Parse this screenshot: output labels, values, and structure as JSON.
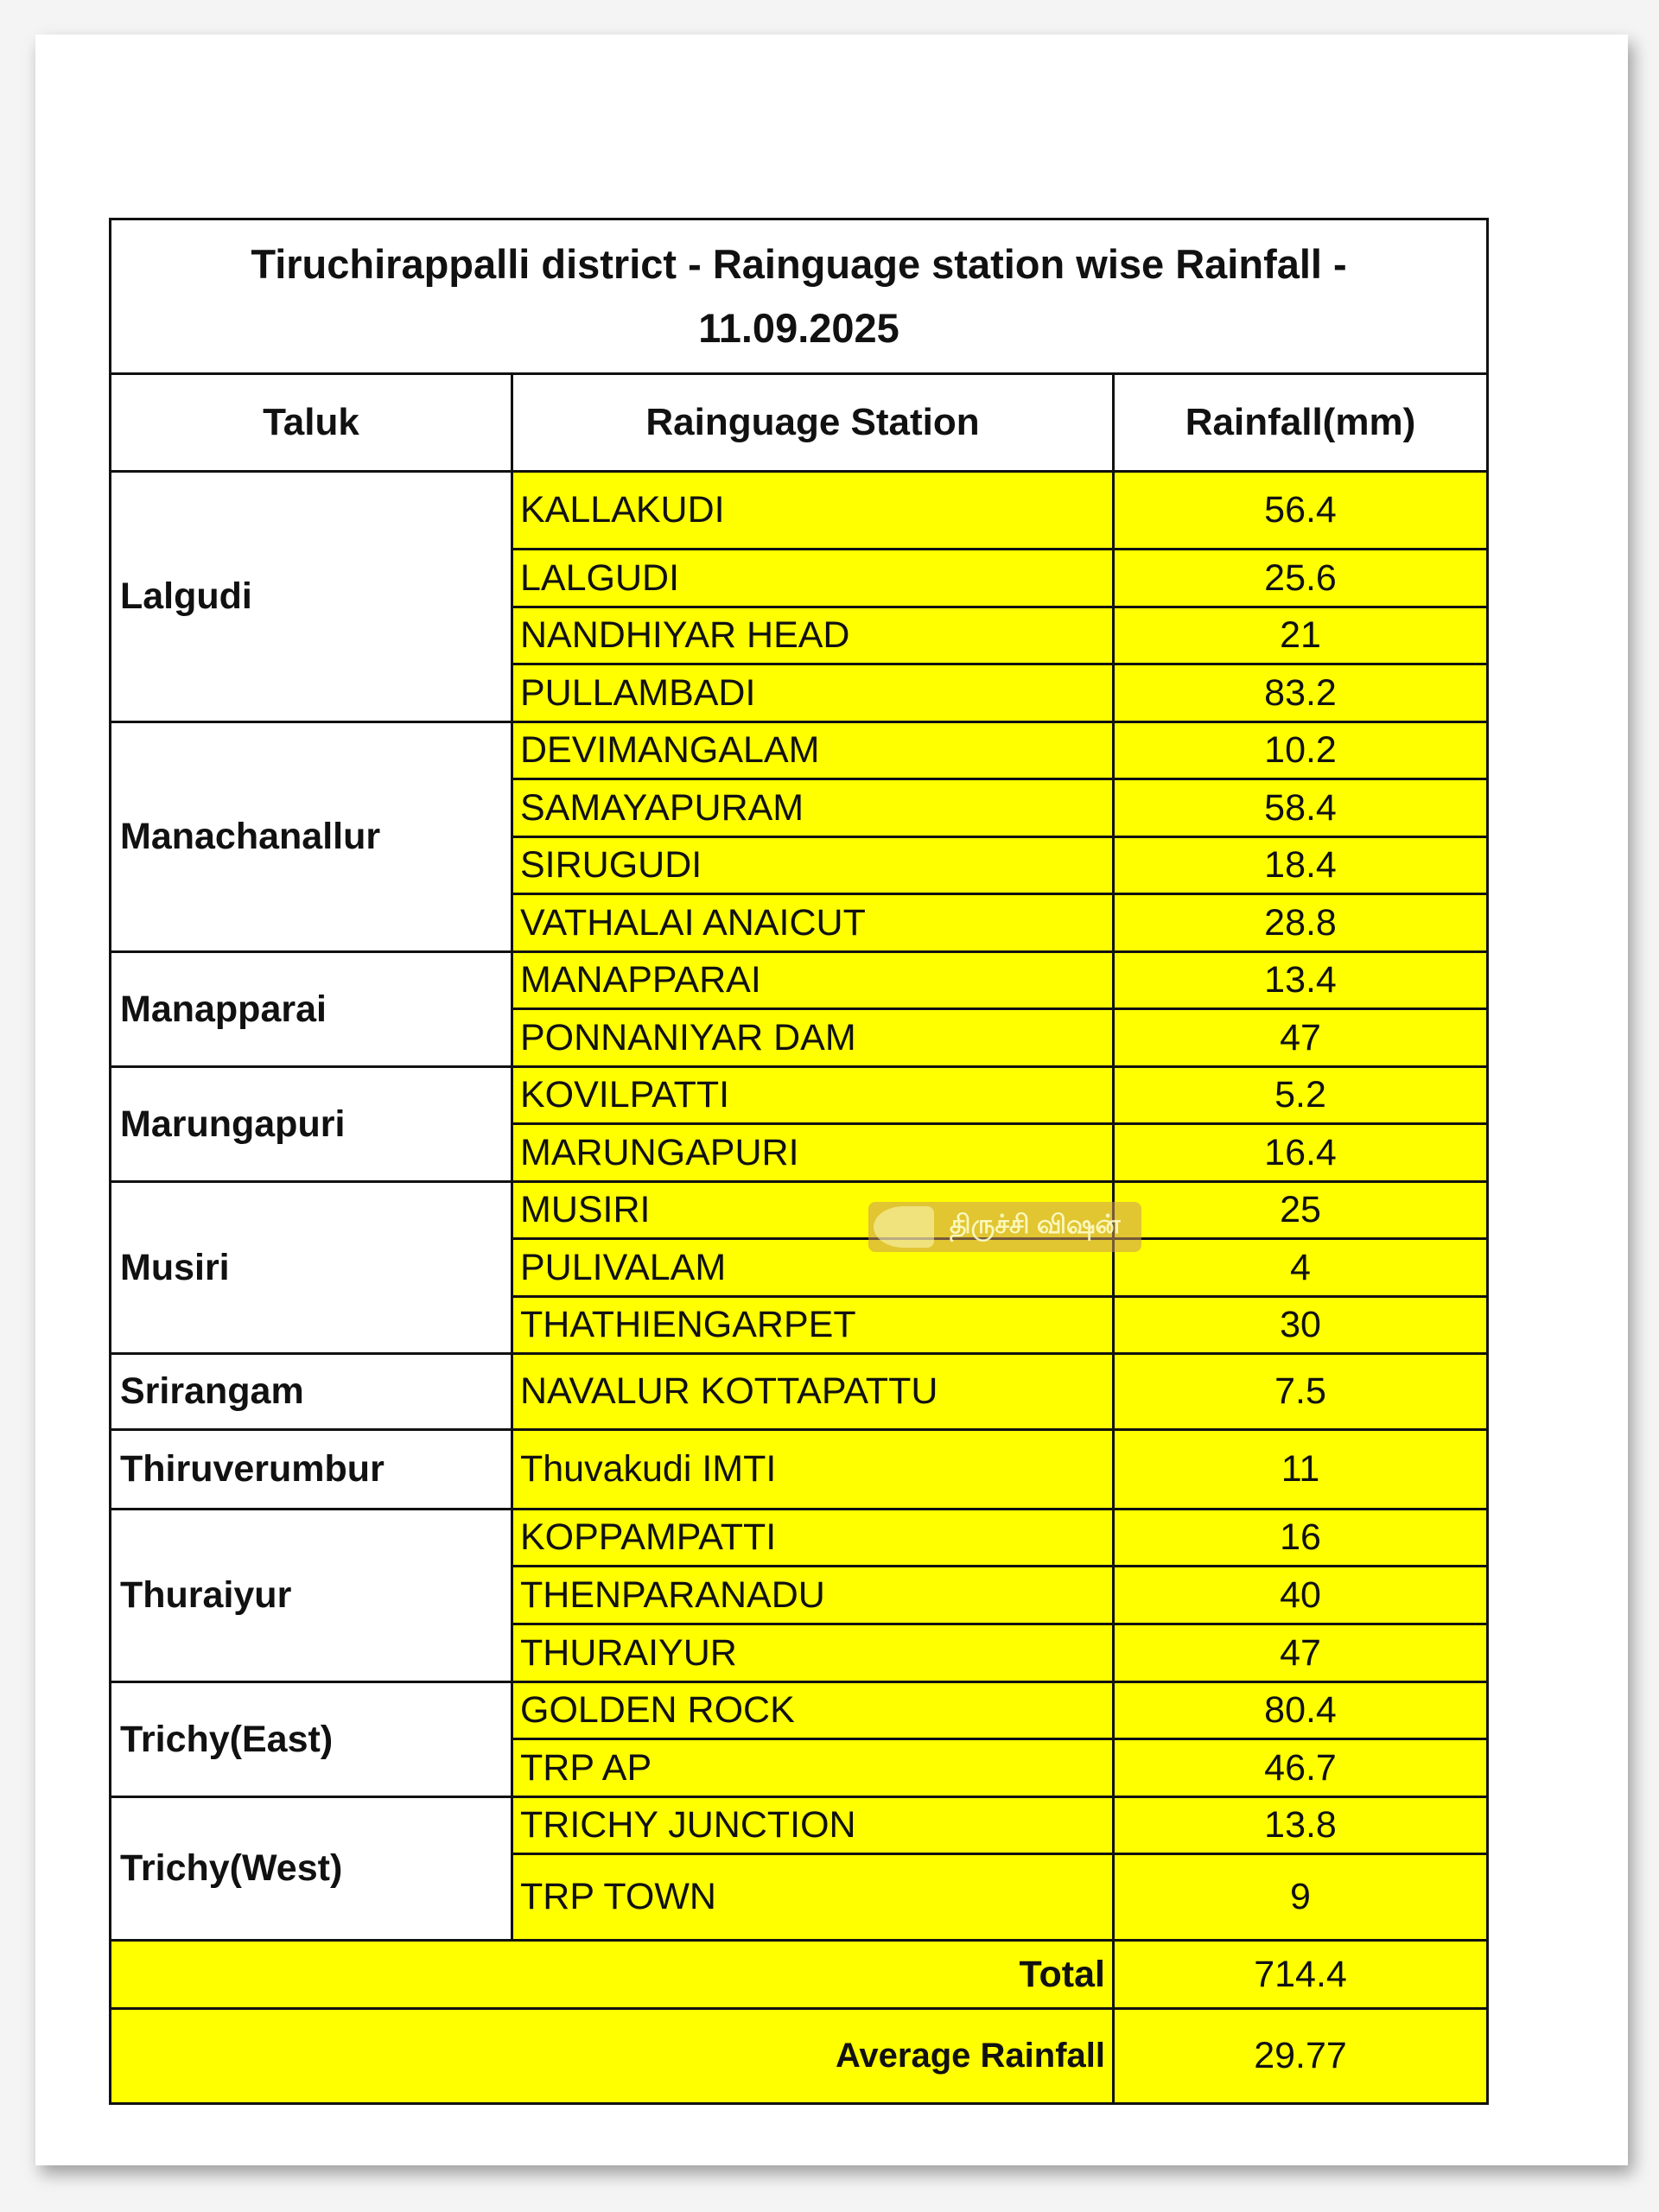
{
  "title_line1": "Tiruchirappalli district  - Rainguage station wise Rainfall -",
  "title_line2": "11.09.2025",
  "headers": {
    "taluk": "Taluk",
    "station": "Rainguage Station",
    "rainfall": "Rainfall(mm)"
  },
  "groups": [
    {
      "taluk": "Lalgudi",
      "stations": [
        [
          "KALLAKUDI",
          "56.4"
        ],
        [
          "LALGUDI",
          "25.6"
        ],
        [
          "NANDHIYAR HEAD",
          "21"
        ],
        [
          "PULLAMBADI",
          "83.2"
        ]
      ]
    },
    {
      "taluk": "Manachanallur",
      "stations": [
        [
          "DEVIMANGALAM",
          "10.2"
        ],
        [
          "SAMAYAPURAM",
          "58.4"
        ],
        [
          "SIRUGUDI",
          "18.4"
        ],
        [
          "VATHALAI ANAICUT",
          "28.8"
        ]
      ]
    },
    {
      "taluk": "Manapparai",
      "stations": [
        [
          "MANAPPARAI",
          "13.4"
        ],
        [
          "PONNANIYAR DAM",
          "47"
        ]
      ]
    },
    {
      "taluk": "Marungapuri",
      "stations": [
        [
          "KOVILPATTI",
          "5.2"
        ],
        [
          "MARUNGAPURI",
          "16.4"
        ]
      ]
    },
    {
      "taluk": "Musiri",
      "stations": [
        [
          "MUSIRI",
          "25"
        ],
        [
          "PULIVALAM",
          "4"
        ],
        [
          "THATHIENGARPET",
          "30"
        ]
      ]
    },
    {
      "taluk": "Srirangam",
      "stations": [
        [
          "NAVALUR KOTTAPATTU",
          "7.5"
        ]
      ]
    },
    {
      "taluk": "Thiruverumbur",
      "stations": [
        [
          "Thuvakudi IMTI",
          "11"
        ]
      ]
    },
    {
      "taluk": "Thuraiyur",
      "stations": [
        [
          "KOPPAMPATTI",
          "16"
        ],
        [
          "THENPARANADU",
          "40"
        ],
        [
          "THURAIYUR",
          "47"
        ]
      ]
    },
    {
      "taluk": "Trichy(East)",
      "stations": [
        [
          "GOLDEN ROCK",
          "80.4"
        ],
        [
          "TRP AP",
          "46.7"
        ]
      ]
    },
    {
      "taluk": "Trichy(West)",
      "stations": [
        [
          "TRICHY JUNCTION",
          "13.8"
        ],
        [
          "TRP TOWN",
          "9"
        ]
      ]
    }
  ],
  "total": {
    "label": "Total",
    "value": "714.4"
  },
  "average": {
    "label": "Average Rainfall",
    "value": "29.77"
  },
  "watermark": "திருச்சி விஷன்",
  "colors": {
    "highlight": "#ffff00",
    "border": "#111111"
  }
}
